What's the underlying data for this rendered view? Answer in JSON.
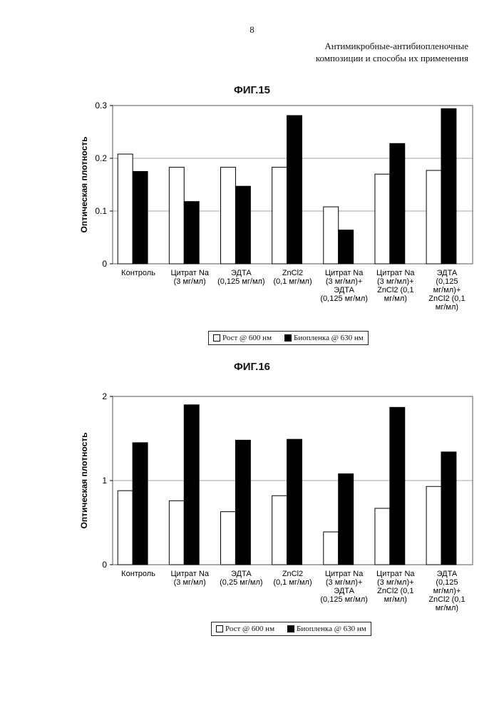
{
  "page": {
    "number": "8",
    "header_line1": "Антимикробные-антибиопленочные",
    "header_line2": "композиции и способы их применения"
  },
  "colors": {
    "growth": "#ffffff",
    "biofilm": "#000000",
    "grid": "#888888"
  },
  "chart_data": [
    {
      "type": "bar",
      "title": "ФИГ.15",
      "ylabel": "Оптическая плотность",
      "ylim": [
        0,
        0.3
      ],
      "yticks": [
        {
          "value": 0,
          "label": "0"
        },
        {
          "value": 0.1,
          "label": "0.1"
        },
        {
          "value": 0.2,
          "label": "0.2"
        },
        {
          "value": 0.3,
          "label": "0.3"
        }
      ],
      "grid": true,
      "legend_position": "bottom",
      "categories": [
        [
          "Контроль"
        ],
        [
          "Цитрат Na",
          "(3 мг/мл)"
        ],
        [
          "ЭДТА",
          "(0,125 мг/мл)"
        ],
        [
          "ZnCl2",
          "(0,1 мг/мл)"
        ],
        [
          "Цитрат Na",
          "(3 мг/мл)+",
          "ЭДТА",
          "(0,125 мг/мл)"
        ],
        [
          "Цитрат Na",
          "(3 мг/мл)+",
          "ZnCl2 (0,1",
          "мг/мл)"
        ],
        [
          "ЭДТА",
          "(0,125",
          "мг/мл)+",
          "ZnCl2 (0,1",
          "мг/мл)"
        ]
      ],
      "series": [
        {
          "name": "Рост @ 600 нм",
          "values": [
            0.208,
            0.183,
            0.183,
            0.183,
            0.108,
            0.17,
            0.177
          ]
        },
        {
          "name": "Биопленка @ 630 нм",
          "values": [
            0.175,
            0.118,
            0.147,
            0.281,
            0.064,
            0.228,
            0.294
          ]
        }
      ]
    },
    {
      "type": "bar",
      "title": "ФИГ.16",
      "ylabel": "Оптическая плотность",
      "ylim": [
        0,
        2
      ],
      "yticks": [
        {
          "value": 0,
          "label": "0"
        },
        {
          "value": 1,
          "label": "1"
        },
        {
          "value": 2,
          "label": "2"
        }
      ],
      "grid": true,
      "legend_position": "bottom",
      "categories": [
        [
          "Контроль"
        ],
        [
          "Цитрат Na",
          "(3 мг/мл)"
        ],
        [
          "ЭДТА",
          "(0,25 мг/мл)"
        ],
        [
          "ZnCl2",
          "(0,1 мг/мл)"
        ],
        [
          "Цитрат Na",
          "(3 мг/мл)+",
          "ЭДТА",
          "(0,125 мг/мл)"
        ],
        [
          "Цитрат Na",
          "(3 мг/мл)+",
          "ZnCl2 (0,1",
          "мг/мл)"
        ],
        [
          "ЭДТА",
          "(0,125",
          "мг/мл)+",
          "ZnCl2 (0,1",
          "мг/мл)"
        ]
      ],
      "series": [
        {
          "name": "Рост @ 600 нм",
          "values": [
            0.88,
            0.76,
            0.63,
            0.82,
            0.39,
            0.67,
            0.93
          ]
        },
        {
          "name": "Биопленка @ 630 нм",
          "values": [
            1.45,
            1.9,
            1.48,
            1.49,
            1.08,
            1.87,
            1.34
          ]
        }
      ]
    }
  ]
}
